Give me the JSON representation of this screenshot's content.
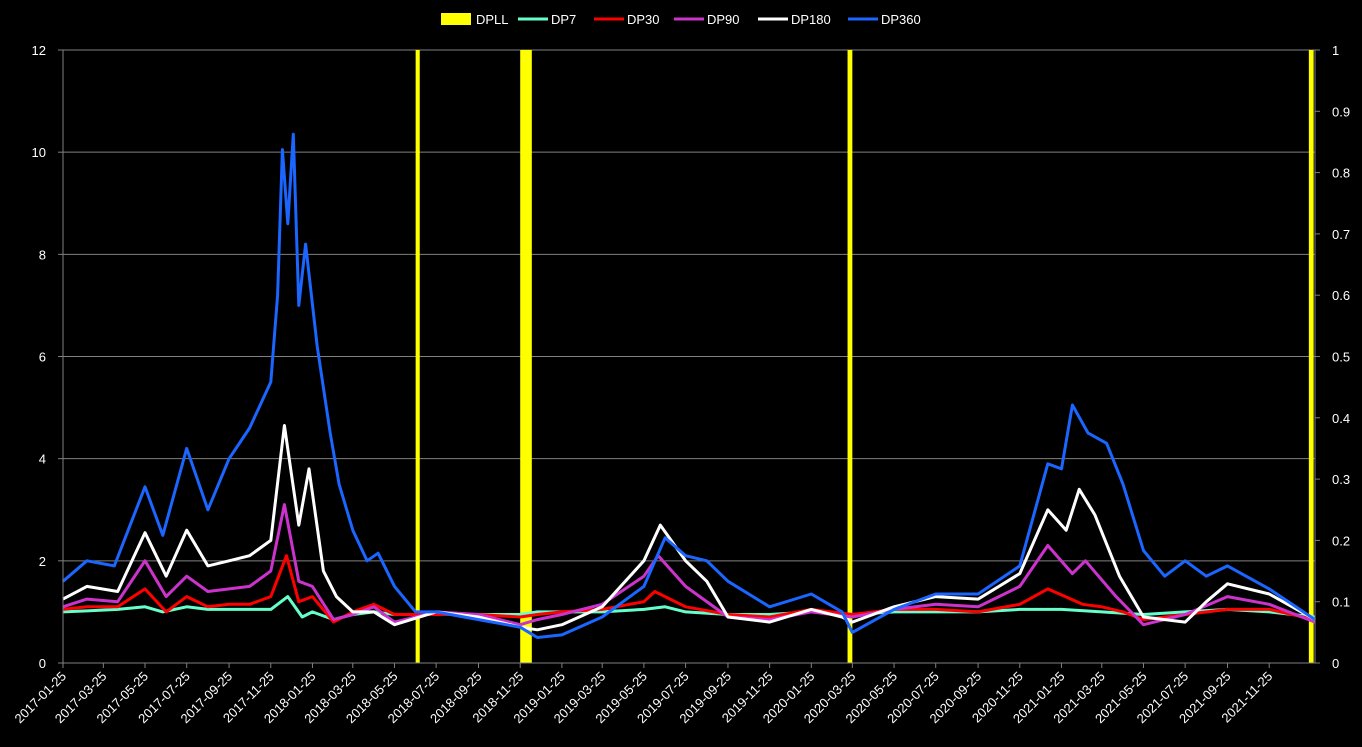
{
  "chart_data": {
    "type": "line",
    "title": "",
    "xlabel": "",
    "ylabel": "",
    "ylim": [
      0,
      12
    ],
    "y2lim": [
      0,
      1
    ],
    "yticks": [
      "0",
      "2",
      "4",
      "6",
      "8",
      "10",
      "12"
    ],
    "y2ticks": [
      "0",
      "0.1",
      "0.2",
      "0.3",
      "0.4",
      "0.5",
      "0.6",
      "0.7",
      "0.8",
      "0.9",
      "1"
    ],
    "xlim": [
      "2017-01-25",
      "2022-01-31"
    ],
    "xticks": [
      "2017-01-25",
      "2017-03-25",
      "2017-05-25",
      "2017-07-25",
      "2017-09-25",
      "2017-11-25",
      "2018-01-25",
      "2018-03-25",
      "2018-05-25",
      "2018-07-25",
      "2018-09-25",
      "2018-11-25",
      "2019-01-25",
      "2019-03-25",
      "2019-05-25",
      "2019-07-25",
      "2019-09-25",
      "2019-11-25",
      "2020-01-25",
      "2020-03-25",
      "2020-05-25",
      "2020-07-25",
      "2020-09-25",
      "2020-11-25",
      "2021-01-25",
      "2021-03-25",
      "2021-05-25",
      "2021-07-25",
      "2021-09-25",
      "2021-11-25"
    ],
    "grid": true,
    "legend_position": "top",
    "bands": {
      "name": "DPLL",
      "color": "#ffff00",
      "axis": "right",
      "value": 1,
      "ranges": [
        [
          "2018-06-25",
          "2018-07-01"
        ],
        [
          "2018-11-25",
          "2018-12-12"
        ],
        [
          "2020-03-18",
          "2020-03-25"
        ],
        [
          "2022-01-22",
          "2022-01-29"
        ]
      ]
    },
    "series": [
      {
        "name": "DP7",
        "color": "#66ffcc",
        "points": [
          [
            "2017-01-25",
            1.0
          ],
          [
            "2017-03-01",
            1.02
          ],
          [
            "2017-04-15",
            1.05
          ],
          [
            "2017-05-25",
            1.1
          ],
          [
            "2017-06-20",
            1.0
          ],
          [
            "2017-07-25",
            1.1
          ],
          [
            "2017-08-25",
            1.05
          ],
          [
            "2017-09-25",
            1.05
          ],
          [
            "2017-10-25",
            1.05
          ],
          [
            "2017-11-25",
            1.05
          ],
          [
            "2017-12-20",
            1.3
          ],
          [
            "2018-01-10",
            0.9
          ],
          [
            "2018-01-25",
            1.0
          ],
          [
            "2018-02-25",
            0.85
          ],
          [
            "2018-03-25",
            0.95
          ],
          [
            "2018-04-25",
            1.0
          ],
          [
            "2018-05-25",
            0.95
          ],
          [
            "2018-07-25",
            0.95
          ],
          [
            "2018-09-25",
            0.95
          ],
          [
            "2018-11-25",
            0.95
          ],
          [
            "2018-12-20",
            1.0
          ],
          [
            "2019-01-25",
            1.0
          ],
          [
            "2019-03-25",
            1.0
          ],
          [
            "2019-05-25",
            1.05
          ],
          [
            "2019-06-25",
            1.1
          ],
          [
            "2019-07-25",
            1.0
          ],
          [
            "2019-09-25",
            0.95
          ],
          [
            "2019-11-25",
            0.95
          ],
          [
            "2020-01-25",
            1.0
          ],
          [
            "2020-03-25",
            0.95
          ],
          [
            "2020-05-25",
            1.0
          ],
          [
            "2020-07-25",
            1.0
          ],
          [
            "2020-09-25",
            1.0
          ],
          [
            "2020-11-25",
            1.05
          ],
          [
            "2021-01-25",
            1.05
          ],
          [
            "2021-03-25",
            1.0
          ],
          [
            "2021-05-25",
            0.95
          ],
          [
            "2021-07-25",
            1.0
          ],
          [
            "2021-09-25",
            1.05
          ],
          [
            "2021-11-25",
            1.0
          ],
          [
            "2022-01-31",
            0.9
          ]
        ]
      },
      {
        "name": "DP30",
        "color": "#ff0000",
        "points": [
          [
            "2017-01-25",
            1.05
          ],
          [
            "2017-03-01",
            1.1
          ],
          [
            "2017-04-15",
            1.1
          ],
          [
            "2017-05-25",
            1.45
          ],
          [
            "2017-06-25",
            1.0
          ],
          [
            "2017-07-25",
            1.3
          ],
          [
            "2017-08-25",
            1.1
          ],
          [
            "2017-09-25",
            1.15
          ],
          [
            "2017-10-25",
            1.15
          ],
          [
            "2017-11-25",
            1.3
          ],
          [
            "2017-12-18",
            2.1
          ],
          [
            "2018-01-05",
            1.2
          ],
          [
            "2018-01-25",
            1.3
          ],
          [
            "2018-02-25",
            0.8
          ],
          [
            "2018-03-25",
            1.0
          ],
          [
            "2018-04-25",
            1.15
          ],
          [
            "2018-05-25",
            0.95
          ],
          [
            "2018-07-25",
            0.95
          ],
          [
            "2018-09-25",
            0.95
          ],
          [
            "2018-11-25",
            0.9
          ],
          [
            "2018-12-20",
            0.95
          ],
          [
            "2019-01-25",
            1.0
          ],
          [
            "2019-03-25",
            1.05
          ],
          [
            "2019-05-25",
            1.2
          ],
          [
            "2019-06-10",
            1.4
          ],
          [
            "2019-07-25",
            1.1
          ],
          [
            "2019-09-25",
            0.95
          ],
          [
            "2019-11-25",
            0.9
          ],
          [
            "2020-01-25",
            1.05
          ],
          [
            "2020-03-25",
            0.95
          ],
          [
            "2020-05-25",
            1.05
          ],
          [
            "2020-07-25",
            1.05
          ],
          [
            "2020-09-25",
            1.0
          ],
          [
            "2020-11-25",
            1.15
          ],
          [
            "2021-01-05",
            1.45
          ],
          [
            "2021-02-25",
            1.15
          ],
          [
            "2021-03-25",
            1.1
          ],
          [
            "2021-04-25",
            1.0
          ],
          [
            "2021-05-25",
            0.85
          ],
          [
            "2021-07-25",
            0.95
          ],
          [
            "2021-09-25",
            1.05
          ],
          [
            "2021-11-25",
            1.05
          ],
          [
            "2022-01-31",
            0.85
          ]
        ]
      },
      {
        "name": "DP90",
        "color": "#cc33cc",
        "points": [
          [
            "2017-01-25",
            1.1
          ],
          [
            "2017-03-01",
            1.25
          ],
          [
            "2017-04-15",
            1.2
          ],
          [
            "2017-05-25",
            2.0
          ],
          [
            "2017-06-25",
            1.3
          ],
          [
            "2017-07-25",
            1.7
          ],
          [
            "2017-08-25",
            1.4
          ],
          [
            "2017-09-25",
            1.45
          ],
          [
            "2017-10-25",
            1.5
          ],
          [
            "2017-11-25",
            1.8
          ],
          [
            "2017-12-15",
            3.1
          ],
          [
            "2018-01-05",
            1.6
          ],
          [
            "2018-01-25",
            1.5
          ],
          [
            "2018-02-25",
            0.85
          ],
          [
            "2018-03-25",
            0.95
          ],
          [
            "2018-04-25",
            1.1
          ],
          [
            "2018-05-25",
            0.8
          ],
          [
            "2018-07-25",
            1.0
          ],
          [
            "2018-09-25",
            0.95
          ],
          [
            "2018-11-25",
            0.75
          ],
          [
            "2018-12-20",
            0.85
          ],
          [
            "2019-01-25",
            0.95
          ],
          [
            "2019-03-25",
            1.15
          ],
          [
            "2019-05-25",
            1.7
          ],
          [
            "2019-06-15",
            2.1
          ],
          [
            "2019-07-25",
            1.5
          ],
          [
            "2019-09-25",
            0.9
          ],
          [
            "2019-11-25",
            0.85
          ],
          [
            "2020-01-25",
            1.0
          ],
          [
            "2020-03-25",
            0.9
          ],
          [
            "2020-05-25",
            1.05
          ],
          [
            "2020-07-25",
            1.15
          ],
          [
            "2020-09-25",
            1.1
          ],
          [
            "2020-11-25",
            1.5
          ],
          [
            "2021-01-05",
            2.3
          ],
          [
            "2021-02-10",
            1.75
          ],
          [
            "2021-03-01",
            2.0
          ],
          [
            "2021-04-15",
            1.3
          ],
          [
            "2021-05-25",
            0.75
          ],
          [
            "2021-07-25",
            0.95
          ],
          [
            "2021-09-25",
            1.3
          ],
          [
            "2021-11-25",
            1.15
          ],
          [
            "2022-01-31",
            0.8
          ]
        ]
      },
      {
        "name": "DP180",
        "color": "#ffffff",
        "points": [
          [
            "2017-01-25",
            1.25
          ],
          [
            "2017-03-01",
            1.5
          ],
          [
            "2017-04-15",
            1.4
          ],
          [
            "2017-05-25",
            2.55
          ],
          [
            "2017-06-25",
            1.7
          ],
          [
            "2017-07-25",
            2.6
          ],
          [
            "2017-08-25",
            1.9
          ],
          [
            "2017-09-25",
            2.0
          ],
          [
            "2017-10-25",
            2.1
          ],
          [
            "2017-11-25",
            2.4
          ],
          [
            "2017-12-15",
            4.65
          ],
          [
            "2018-01-05",
            2.7
          ],
          [
            "2018-01-20",
            3.8
          ],
          [
            "2018-02-10",
            1.8
          ],
          [
            "2018-03-01",
            1.3
          ],
          [
            "2018-03-25",
            1.0
          ],
          [
            "2018-04-25",
            1.0
          ],
          [
            "2018-05-25",
            0.75
          ],
          [
            "2018-07-25",
            1.0
          ],
          [
            "2018-09-25",
            0.9
          ],
          [
            "2018-11-25",
            0.7
          ],
          [
            "2018-12-20",
            0.65
          ],
          [
            "2019-01-25",
            0.75
          ],
          [
            "2019-03-25",
            1.1
          ],
          [
            "2019-05-25",
            2.0
          ],
          [
            "2019-06-18",
            2.7
          ],
          [
            "2019-07-25",
            2.0
          ],
          [
            "2019-08-25",
            1.6
          ],
          [
            "2019-09-25",
            0.9
          ],
          [
            "2019-11-25",
            0.8
          ],
          [
            "2020-01-25",
            1.05
          ],
          [
            "2020-03-10",
            0.9
          ],
          [
            "2020-03-25",
            0.8
          ],
          [
            "2020-05-25",
            1.1
          ],
          [
            "2020-07-25",
            1.3
          ],
          [
            "2020-09-25",
            1.25
          ],
          [
            "2020-11-25",
            1.75
          ],
          [
            "2021-01-05",
            3.0
          ],
          [
            "2021-02-01",
            2.6
          ],
          [
            "2021-02-20",
            3.4
          ],
          [
            "2021-03-15",
            2.9
          ],
          [
            "2021-04-20",
            1.7
          ],
          [
            "2021-05-25",
            0.9
          ],
          [
            "2021-07-25",
            0.8
          ],
          [
            "2021-08-25",
            1.2
          ],
          [
            "2021-09-25",
            1.55
          ],
          [
            "2021-11-25",
            1.35
          ],
          [
            "2022-01-31",
            0.85
          ]
        ]
      },
      {
        "name": "DP360",
        "color": "#1a66ff",
        "points": [
          [
            "2017-01-25",
            1.6
          ],
          [
            "2017-03-01",
            2.0
          ],
          [
            "2017-04-10",
            1.9
          ],
          [
            "2017-05-25",
            3.45
          ],
          [
            "2017-06-20",
            2.5
          ],
          [
            "2017-07-25",
            4.2
          ],
          [
            "2017-08-25",
            3.0
          ],
          [
            "2017-09-25",
            4.0
          ],
          [
            "2017-10-25",
            4.6
          ],
          [
            "2017-11-25",
            5.5
          ],
          [
            "2017-12-05",
            7.2
          ],
          [
            "2017-12-12",
            10.05
          ],
          [
            "2017-12-20",
            8.6
          ],
          [
            "2017-12-28",
            10.35
          ],
          [
            "2018-01-05",
            7.0
          ],
          [
            "2018-01-15",
            8.2
          ],
          [
            "2018-02-01",
            6.2
          ],
          [
            "2018-02-20",
            4.5
          ],
          [
            "2018-03-05",
            3.5
          ],
          [
            "2018-03-25",
            2.6
          ],
          [
            "2018-04-15",
            2.0
          ],
          [
            "2018-05-01",
            2.15
          ],
          [
            "2018-05-25",
            1.5
          ],
          [
            "2018-06-25",
            1.0
          ],
          [
            "2018-07-25",
            1.0
          ],
          [
            "2018-09-25",
            0.85
          ],
          [
            "2018-11-25",
            0.7
          ],
          [
            "2018-12-20",
            0.5
          ],
          [
            "2019-01-25",
            0.55
          ],
          [
            "2019-03-25",
            0.9
          ],
          [
            "2019-05-25",
            1.5
          ],
          [
            "2019-06-25",
            2.45
          ],
          [
            "2019-07-25",
            2.1
          ],
          [
            "2019-08-25",
            2.0
          ],
          [
            "2019-09-25",
            1.6
          ],
          [
            "2019-11-25",
            1.1
          ],
          [
            "2020-01-25",
            1.35
          ],
          [
            "2020-03-10",
            1.0
          ],
          [
            "2020-03-25",
            0.6
          ],
          [
            "2020-05-25",
            1.05
          ],
          [
            "2020-07-25",
            1.35
          ],
          [
            "2020-09-25",
            1.35
          ],
          [
            "2020-11-25",
            1.9
          ],
          [
            "2021-01-05",
            3.9
          ],
          [
            "2021-01-25",
            3.8
          ],
          [
            "2021-02-10",
            5.05
          ],
          [
            "2021-03-05",
            4.5
          ],
          [
            "2021-04-01",
            4.3
          ],
          [
            "2021-04-25",
            3.5
          ],
          [
            "2021-05-25",
            2.2
          ],
          [
            "2021-06-25",
            1.7
          ],
          [
            "2021-07-25",
            2.0
          ],
          [
            "2021-08-25",
            1.7
          ],
          [
            "2021-09-25",
            1.9
          ],
          [
            "2021-11-25",
            1.45
          ],
          [
            "2022-01-31",
            0.85
          ]
        ]
      }
    ]
  }
}
